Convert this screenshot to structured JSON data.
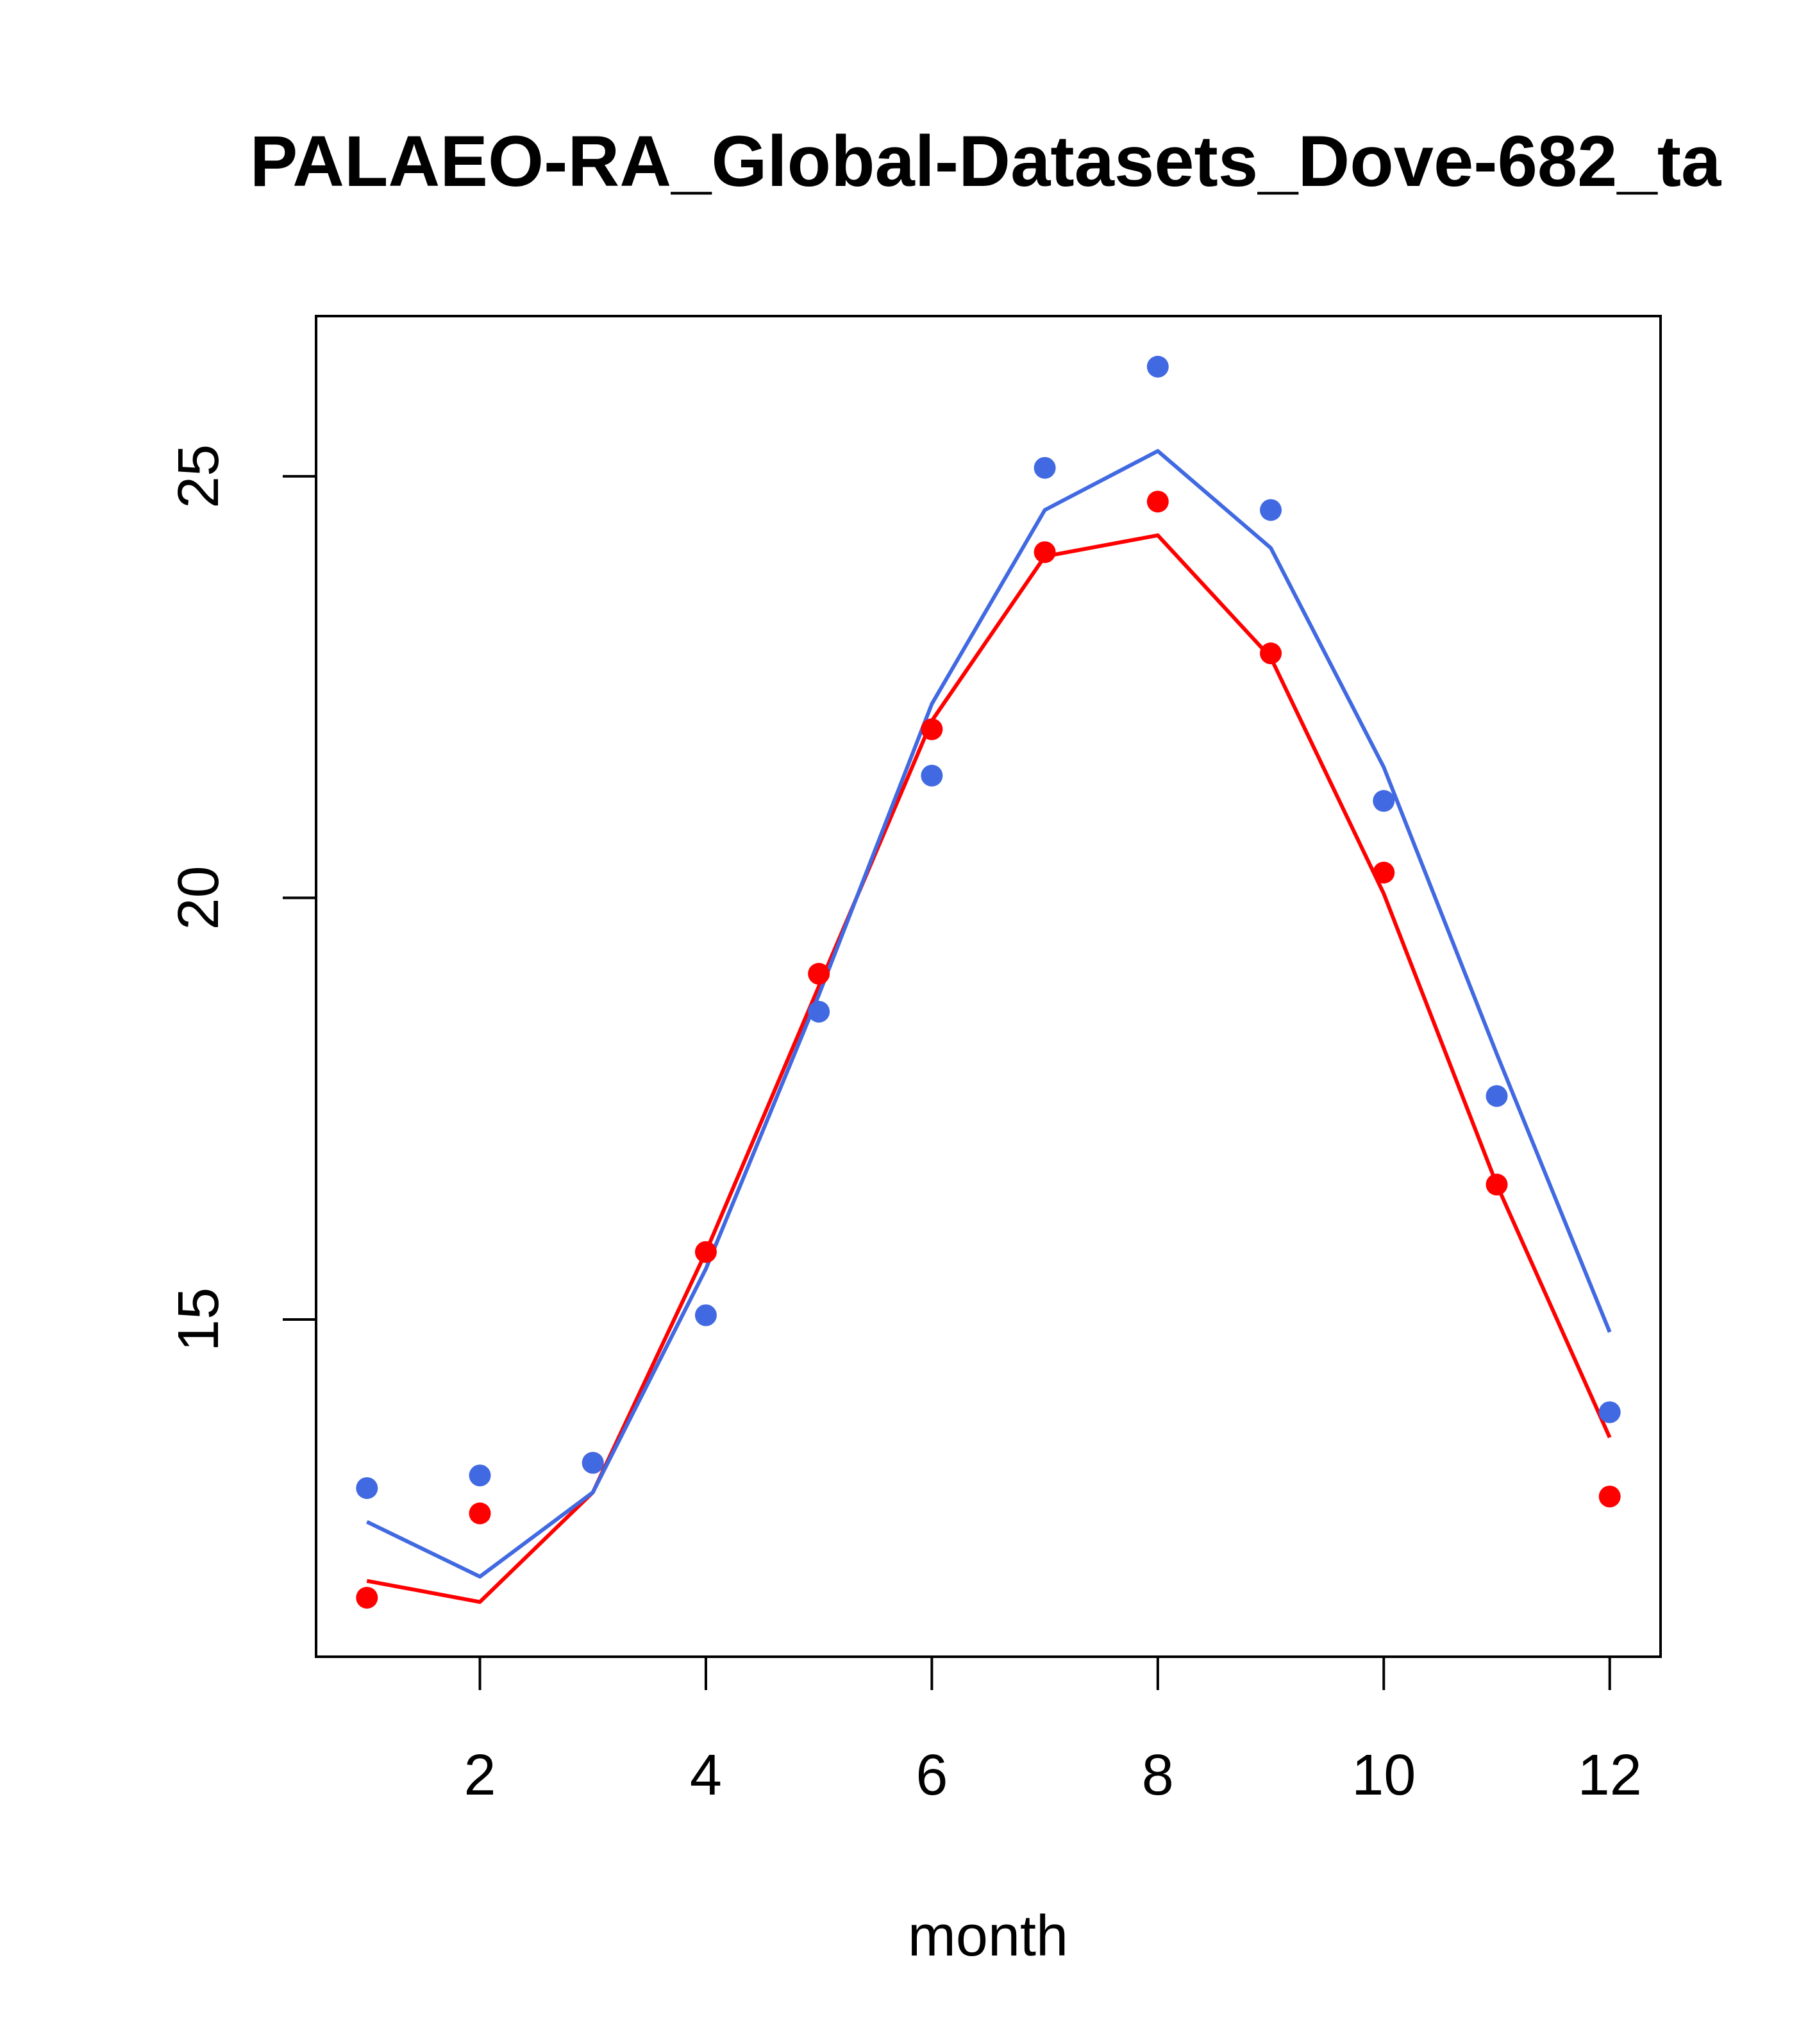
{
  "chart_data": {
    "type": "line",
    "title": "PALAEO-RA_Global-Datasets_Dove-682_ta",
    "xlabel": "month",
    "ylabel": "",
    "xlim": [
      0.55,
      12.45
    ],
    "ylim": [
      11.0,
      26.9
    ],
    "x_ticks": [
      2,
      4,
      6,
      8,
      10,
      12
    ],
    "y_ticks": [
      15,
      20,
      25
    ],
    "grid": false,
    "legend": "none",
    "x": [
      1,
      2,
      3,
      4,
      5,
      6,
      7,
      8,
      9,
      10,
      11,
      12
    ],
    "series": [
      {
        "name": "red points",
        "kind": "points",
        "color": "#ff0000",
        "values": [
          11.7,
          12.7,
          13.3,
          15.8,
          19.1,
          22.0,
          24.1,
          24.7,
          22.9,
          20.3,
          16.6,
          12.9
        ]
      },
      {
        "name": "red line",
        "kind": "line",
        "color": "#ff0000",
        "values": [
          11.9,
          11.65,
          12.95,
          15.8,
          18.95,
          22.1,
          24.05,
          24.3,
          22.85,
          20.05,
          16.6,
          13.6
        ]
      },
      {
        "name": "blue points",
        "kind": "points",
        "color": "#4169e1",
        "values": [
          13.0,
          13.15,
          13.3,
          15.05,
          18.65,
          21.45,
          25.1,
          26.3,
          24.6,
          21.15,
          17.65,
          13.9
        ]
      },
      {
        "name": "blue line",
        "kind": "line",
        "color": "#4169e1",
        "values": [
          12.6,
          11.95,
          12.95,
          15.6,
          18.85,
          22.3,
          24.6,
          25.3,
          24.15,
          21.55,
          18.15,
          14.85
        ]
      }
    ]
  }
}
